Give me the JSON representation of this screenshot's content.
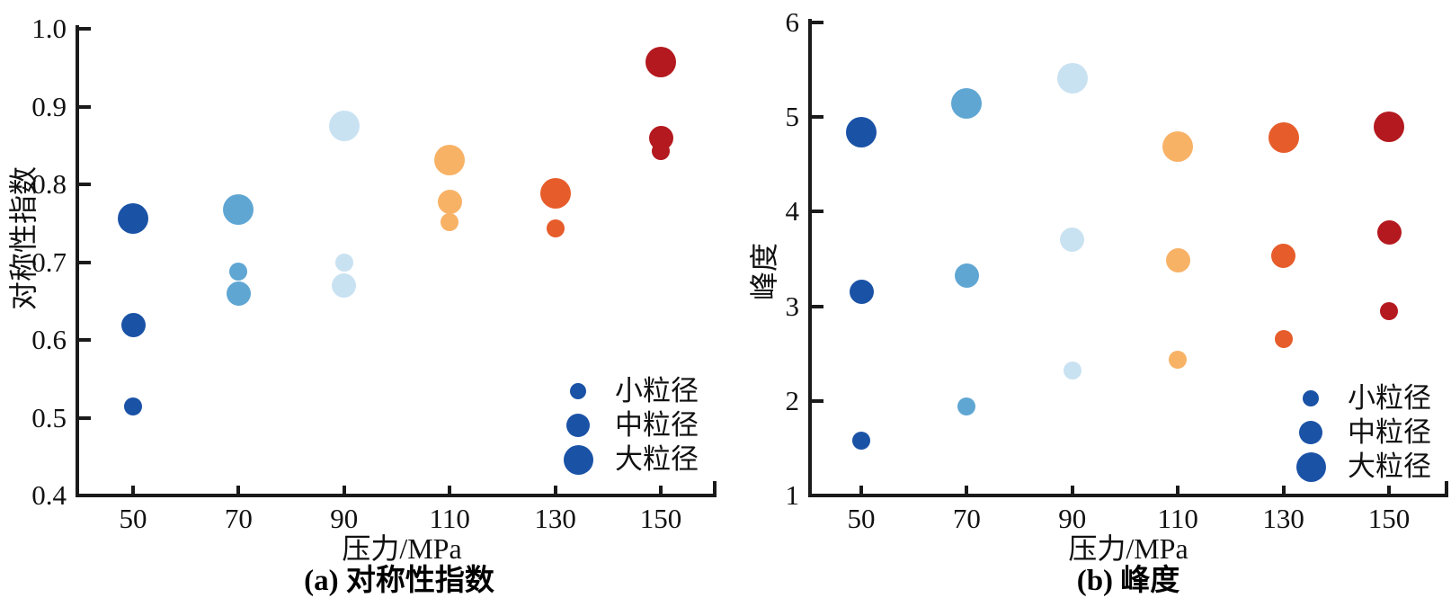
{
  "figure": {
    "axis_color": "#1a1a1a",
    "legend_dot_color": "#1a52a6",
    "point_colors": {
      "50": "#1a52a6",
      "70": "#5fa6d3",
      "90": "#c9e2f2",
      "110": "#f8b266",
      "130": "#e65c2b",
      "150": "#b3191f"
    }
  },
  "chart_data": [
    {
      "type": "scatter",
      "panel": "a",
      "caption": "(a) 对称性指数",
      "xlabel": "压力/MPa",
      "ylabel": "对称性指数",
      "xlim": [
        40,
        160
      ],
      "ylim": [
        0.4,
        1.0
      ],
      "x_ticks": [
        50,
        70,
        90,
        110,
        130,
        150
      ],
      "y_ticks": [
        1.0,
        0.9,
        0.8,
        0.7,
        0.6,
        0.5,
        0.4
      ],
      "y_tick_labels": [
        "1.0",
        "0.9",
        "0.8",
        "0.7",
        "0.6",
        "0.5",
        "0.4"
      ],
      "grid": false,
      "legend_position": "inside-bottom-right",
      "legend": [
        {
          "label": "小粒径",
          "size": "small"
        },
        {
          "label": "中粒径",
          "size": "medium"
        },
        {
          "label": "大粒径",
          "size": "large"
        }
      ],
      "series": [
        {
          "name": "大粒径",
          "size": "large",
          "points": [
            {
              "x": 50,
              "y": 0.756
            },
            {
              "x": 70,
              "y": 0.768
            },
            {
              "x": 90,
              "y": 0.875
            },
            {
              "x": 110,
              "y": 0.831
            },
            {
              "x": 130,
              "y": 0.789
            },
            {
              "x": 150,
              "y": 0.957
            }
          ]
        },
        {
          "name": "中粒径",
          "size": "medium",
          "points": [
            {
              "x": 50,
              "y": 0.619
            },
            {
              "x": 70,
              "y": 0.66
            },
            {
              "x": 90,
              "y": 0.67
            },
            {
              "x": 110,
              "y": 0.778
            },
            {
              "x": 150,
              "y": 0.86
            }
          ]
        },
        {
          "name": "小粒径",
          "size": "small",
          "points": [
            {
              "x": 50,
              "y": 0.515
            },
            {
              "x": 70,
              "y": 0.688
            },
            {
              "x": 90,
              "y": 0.699
            },
            {
              "x": 110,
              "y": 0.751
            },
            {
              "x": 130,
              "y": 0.743
            },
            {
              "x": 150,
              "y": 0.843
            }
          ]
        }
      ]
    },
    {
      "type": "scatter",
      "panel": "b",
      "caption": "(b) 峰度",
      "xlabel": "压力/MPa",
      "ylabel": "峰度",
      "xlim": [
        40,
        160
      ],
      "ylim": [
        1,
        6
      ],
      "x_ticks": [
        50,
        70,
        90,
        110,
        130,
        150
      ],
      "y_ticks": [
        6,
        5,
        4,
        3,
        2,
        1
      ],
      "y_tick_labels": [
        "6",
        "5",
        "4",
        "3",
        "2",
        "1"
      ],
      "grid": false,
      "legend_position": "inside-bottom-right",
      "legend": [
        {
          "label": "小粒径",
          "size": "small"
        },
        {
          "label": "中粒径",
          "size": "medium"
        },
        {
          "label": "大粒径",
          "size": "large"
        }
      ],
      "series": [
        {
          "name": "大粒径",
          "size": "large",
          "points": [
            {
              "x": 50,
              "y": 4.84
            },
            {
              "x": 70,
              "y": 5.14
            },
            {
              "x": 90,
              "y": 5.41
            },
            {
              "x": 110,
              "y": 4.69
            },
            {
              "x": 130,
              "y": 4.78
            },
            {
              "x": 150,
              "y": 4.9
            }
          ]
        },
        {
          "name": "中粒径",
          "size": "medium",
          "points": [
            {
              "x": 50,
              "y": 3.15
            },
            {
              "x": 70,
              "y": 3.32
            },
            {
              "x": 90,
              "y": 3.7
            },
            {
              "x": 110,
              "y": 3.49
            },
            {
              "x": 130,
              "y": 3.53
            },
            {
              "x": 150,
              "y": 3.78
            }
          ]
        },
        {
          "name": "小粒径",
          "size": "small",
          "points": [
            {
              "x": 50,
              "y": 1.58
            },
            {
              "x": 70,
              "y": 1.94
            },
            {
              "x": 90,
              "y": 2.32
            },
            {
              "x": 110,
              "y": 2.44
            },
            {
              "x": 130,
              "y": 2.65
            },
            {
              "x": 150,
              "y": 2.95
            }
          ]
        }
      ]
    }
  ]
}
